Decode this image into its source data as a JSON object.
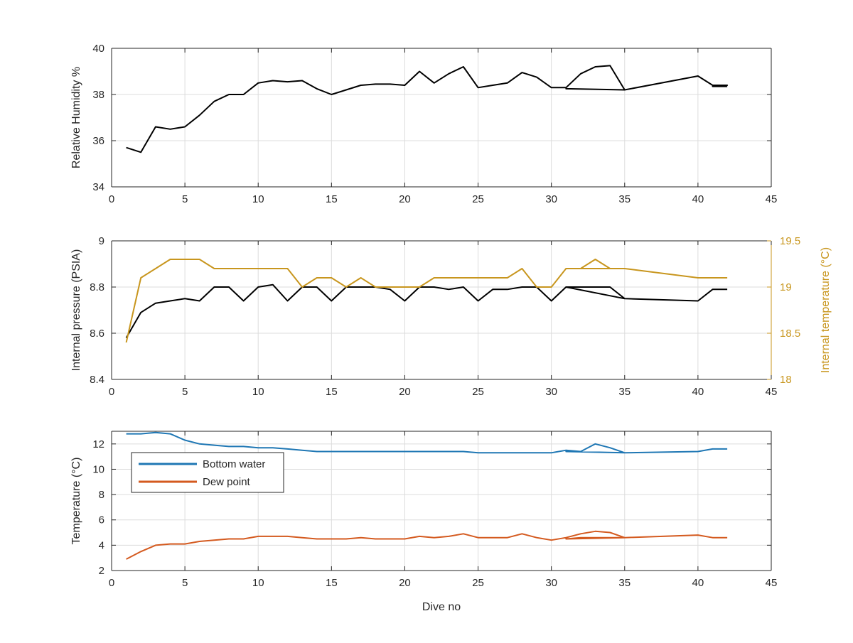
{
  "colors": {
    "black": "#000000",
    "gold": "#c8961e",
    "blue": "#1f77b4",
    "orange": "#d45a1f",
    "grid": "#dcdcdc",
    "axis": "#262626"
  },
  "chart_data": [
    {
      "type": "line",
      "xlim": [
        0,
        45
      ],
      "ylim": [
        34,
        40
      ],
      "xticks": [
        "0",
        "5",
        "10",
        "15",
        "20",
        "25",
        "30",
        "35",
        "40",
        "45"
      ],
      "yticks": [
        "34",
        "36",
        "38",
        "40"
      ],
      "xlabel": "",
      "ylabel": "Relative Humidity %",
      "grid": true,
      "series": [
        {
          "color": "#000000",
          "x": [
            1,
            2,
            3,
            4,
            5,
            6,
            7,
            8,
            9,
            10,
            11,
            12,
            13,
            14,
            15,
            16,
            17,
            18,
            19,
            20,
            21,
            22,
            23,
            24,
            25,
            26,
            27,
            28,
            29,
            30,
            31,
            32,
            33,
            34,
            35,
            31,
            35,
            40,
            41,
            42,
            41,
            42
          ],
          "y": [
            35.7,
            35.5,
            36.6,
            36.5,
            36.6,
            37.1,
            37.7,
            38.0,
            38.0,
            38.5,
            38.6,
            38.55,
            38.6,
            38.25,
            38.0,
            38.2,
            38.4,
            38.45,
            38.45,
            38.4,
            39.0,
            38.5,
            38.9,
            39.2,
            38.3,
            38.4,
            38.5,
            38.95,
            38.75,
            38.3,
            38.3,
            38.9,
            39.2,
            39.25,
            38.2,
            38.25,
            38.2,
            38.8,
            38.4,
            38.4,
            38.35,
            38.35
          ]
        }
      ]
    },
    {
      "type": "line",
      "xlim": [
        0,
        45
      ],
      "ylim": [
        8.4,
        9
      ],
      "y2lim": [
        18,
        19.5
      ],
      "xticks": [
        "0",
        "5",
        "10",
        "15",
        "20",
        "25",
        "30",
        "35",
        "40",
        "45"
      ],
      "yticks": [
        "8.4",
        "8.6",
        "8.8",
        "9"
      ],
      "y2ticks": [
        "18",
        "18.5",
        "19",
        "19.5"
      ],
      "xlabel": "",
      "ylabel": "Internal pressure (PSIA)",
      "y2label": "Internal temperature (°C)",
      "grid": true,
      "series": [
        {
          "axis": "left",
          "color": "#000000",
          "x": [
            1,
            2,
            3,
            4,
            5,
            6,
            7,
            8,
            9,
            10,
            11,
            12,
            13,
            14,
            15,
            16,
            17,
            18,
            19,
            20,
            21,
            22,
            23,
            24,
            25,
            26,
            27,
            28,
            29,
            30,
            31,
            32,
            33,
            34,
            35,
            31,
            35,
            40,
            41,
            42
          ],
          "y": [
            8.58,
            8.69,
            8.73,
            8.74,
            8.75,
            8.74,
            8.8,
            8.8,
            8.74,
            8.8,
            8.81,
            8.74,
            8.8,
            8.8,
            8.74,
            8.8,
            8.8,
            8.8,
            8.79,
            8.74,
            8.8,
            8.8,
            8.79,
            8.8,
            8.74,
            8.79,
            8.79,
            8.8,
            8.8,
            8.74,
            8.8,
            8.8,
            8.8,
            8.8,
            8.75,
            8.8,
            8.75,
            8.74,
            8.79,
            8.79
          ]
        },
        {
          "axis": "right",
          "color": "#c8961e",
          "x": [
            1,
            2,
            3,
            4,
            5,
            6,
            7,
            8,
            9,
            10,
            11,
            12,
            13,
            14,
            15,
            16,
            17,
            18,
            19,
            20,
            21,
            22,
            23,
            24,
            25,
            26,
            27,
            28,
            29,
            30,
            31,
            32,
            33,
            34,
            35,
            31,
            32,
            33,
            34,
            35,
            40,
            41,
            42
          ],
          "y": [
            18.4,
            19.1,
            19.2,
            19.3,
            19.3,
            19.3,
            19.2,
            19.2,
            19.2,
            19.2,
            19.2,
            19.2,
            19.0,
            19.1,
            19.1,
            19.0,
            19.1,
            19.0,
            19.0,
            19.0,
            19.0,
            19.1,
            19.1,
            19.1,
            19.1,
            19.1,
            19.1,
            19.2,
            19.0,
            19.0,
            19.2,
            19.2,
            19.3,
            19.2,
            19.2,
            19.2,
            19.2,
            19.2,
            19.2,
            19.2,
            19.1,
            19.1,
            19.1
          ]
        }
      ]
    },
    {
      "type": "line",
      "xlim": [
        0,
        45
      ],
      "ylim": [
        2,
        13
      ],
      "xticks": [
        "0",
        "5",
        "10",
        "15",
        "20",
        "25",
        "30",
        "35",
        "40",
        "45"
      ],
      "yticks": [
        "2",
        "4",
        "6",
        "8",
        "10",
        "12"
      ],
      "xlabel": "Dive no",
      "ylabel": "Temperature (°C)",
      "grid": true,
      "legend_position": "upper-left",
      "series": [
        {
          "name": "Bottom water",
          "color": "#1f77b4",
          "x": [
            1,
            2,
            3,
            4,
            5,
            6,
            7,
            8,
            9,
            10,
            11,
            12,
            13,
            14,
            15,
            16,
            17,
            18,
            19,
            20,
            21,
            22,
            23,
            24,
            25,
            26,
            27,
            28,
            29,
            30,
            31,
            32,
            33,
            34,
            35,
            31,
            35,
            40,
            41,
            42
          ],
          "y": [
            12.8,
            12.8,
            12.9,
            12.8,
            12.3,
            12.0,
            11.9,
            11.8,
            11.8,
            11.7,
            11.7,
            11.6,
            11.5,
            11.4,
            11.4,
            11.4,
            11.4,
            11.4,
            11.4,
            11.4,
            11.4,
            11.4,
            11.4,
            11.4,
            11.3,
            11.3,
            11.3,
            11.3,
            11.3,
            11.3,
            11.5,
            11.4,
            12.0,
            11.7,
            11.3,
            11.4,
            11.3,
            11.4,
            11.6,
            11.6
          ]
        },
        {
          "name": "Dew point",
          "color": "#d45a1f",
          "x": [
            1,
            2,
            3,
            4,
            5,
            6,
            7,
            8,
            9,
            10,
            11,
            12,
            13,
            14,
            15,
            16,
            17,
            18,
            19,
            20,
            21,
            22,
            23,
            24,
            25,
            26,
            27,
            28,
            29,
            30,
            31,
            32,
            33,
            34,
            35,
            31,
            32,
            33,
            34,
            35,
            40,
            41,
            42
          ],
          "y": [
            2.9,
            3.5,
            4.0,
            4.1,
            4.1,
            4.3,
            4.4,
            4.5,
            4.5,
            4.7,
            4.7,
            4.7,
            4.6,
            4.5,
            4.5,
            4.5,
            4.6,
            4.5,
            4.5,
            4.5,
            4.7,
            4.6,
            4.7,
            4.9,
            4.6,
            4.6,
            4.6,
            4.9,
            4.6,
            4.4,
            4.6,
            4.9,
            5.1,
            5.0,
            4.6,
            4.5,
            4.6,
            4.6,
            4.6,
            4.6,
            4.8,
            4.6,
            4.6
          ]
        }
      ]
    }
  ]
}
